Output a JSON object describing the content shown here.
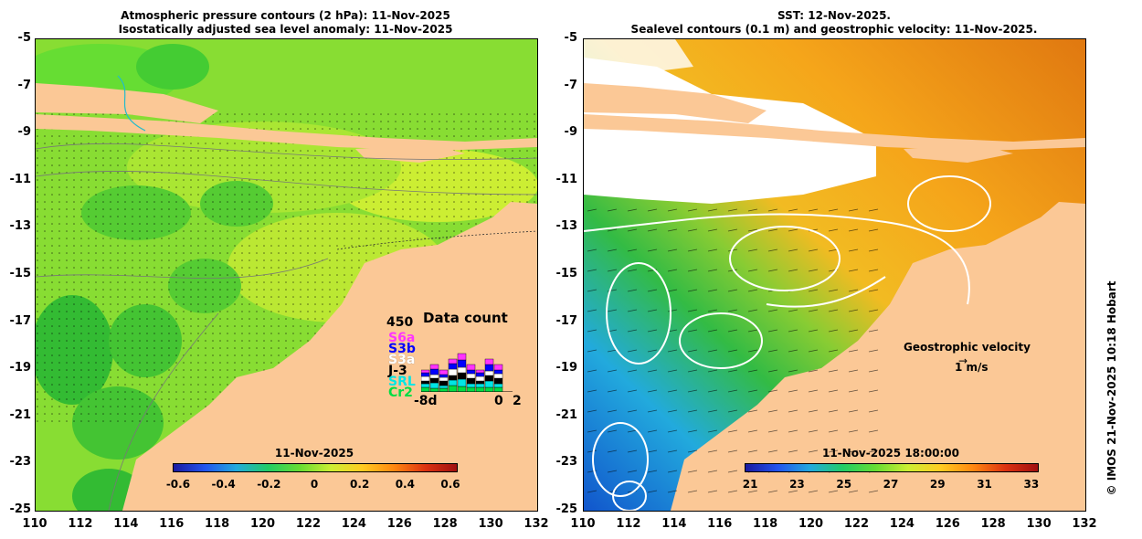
{
  "left_panel": {
    "title_line1": "Atmospheric pressure contours (2 hPa): 11-Nov-2025",
    "title_line2": "Isostatically adjusted sea level anomaly: 11-Nov-2025",
    "colorbar": {
      "label": "11-Nov-2025",
      "ticks": [
        "-0.6",
        "-0.4",
        "-0.2",
        "0",
        "0.2",
        "0.4",
        "0.6"
      ],
      "range": [
        -0.6,
        0.6
      ]
    },
    "data_count": {
      "title": "Data count",
      "ymax": "450",
      "satellites": [
        {
          "name": "S6a",
          "color": "#ff33ff"
        },
        {
          "name": "S3b",
          "color": "#0000ff"
        },
        {
          "name": "S3a",
          "color": "#ffffff"
        },
        {
          "name": "J-3",
          "color": "#000000"
        },
        {
          "name": "SRL",
          "color": "#00e5e5"
        },
        {
          "name": "Cr2",
          "color": "#00dd44"
        }
      ],
      "x_start": "-8d",
      "x_mid": "0",
      "x_end": "2"
    }
  },
  "right_panel": {
    "title_line1": "SST: 12-Nov-2025.",
    "title_line2": "Sealevel contours (0.1 m) and geostrophic velocity: 11-Nov-2025.",
    "colorbar": {
      "label": "11-Nov-2025 18:00:00",
      "ticks": [
        "21",
        "23",
        "25",
        "27",
        "29",
        "31",
        "33"
      ],
      "range": [
        21,
        33
      ]
    },
    "velocity_legend": {
      "label": "Geostrophic velocity",
      "scale": "1 m/s"
    }
  },
  "axes": {
    "y_ticks": [
      "-5",
      "-7",
      "-9",
      "-11",
      "-13",
      "-15",
      "-17",
      "-19",
      "-21",
      "-23",
      "-25"
    ],
    "x_ticks": [
      "110",
      "112",
      "114",
      "116",
      "118",
      "120",
      "122",
      "124",
      "126",
      "128",
      "130",
      "132"
    ],
    "lat_range": [
      -25,
      -5
    ],
    "lon_range": [
      110,
      132
    ]
  },
  "credit": "© IMOS 21-Nov-2025 10:18 Hobart",
  "colors": {
    "land": "#fbc896",
    "sla_green": "#77dd33",
    "sla_yellow": "#ccee33",
    "sst_orange": "#f5a51a",
    "sst_green": "#33bb33",
    "sst_blue": "#2277dd"
  }
}
